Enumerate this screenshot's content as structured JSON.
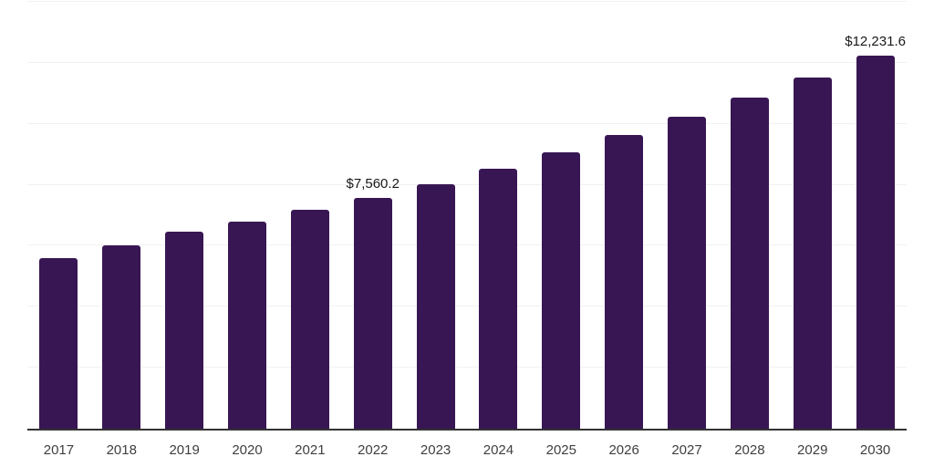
{
  "chart_data": {
    "type": "bar",
    "title": "",
    "xlabel": "",
    "ylabel": "",
    "legend_position": "none",
    "grid": "horizontal-light",
    "ylim": [
      0,
      14000
    ],
    "grid_step": 2000,
    "categories": [
      "2017",
      "2018",
      "2019",
      "2020",
      "2021",
      "2022",
      "2023",
      "2024",
      "2025",
      "2026",
      "2027",
      "2028",
      "2029",
      "2030"
    ],
    "values": [
      5580,
      6000,
      6450,
      6780,
      7190,
      7560.2,
      8030,
      8530,
      9060,
      9620,
      10220,
      10850,
      11520,
      12231.6
    ],
    "bar_labels": [
      "",
      "",
      "",
      "",
      "",
      "$7,560.2",
      "",
      "",
      "",
      "",
      "",
      "",
      "",
      "$12,231.6"
    ],
    "colors": {
      "bar": "#381653",
      "grid": "#f1f1f3",
      "axis": "#333333",
      "tick_label": "#3f3f3f",
      "value_label": "#191919",
      "background": "#ffffff"
    }
  }
}
